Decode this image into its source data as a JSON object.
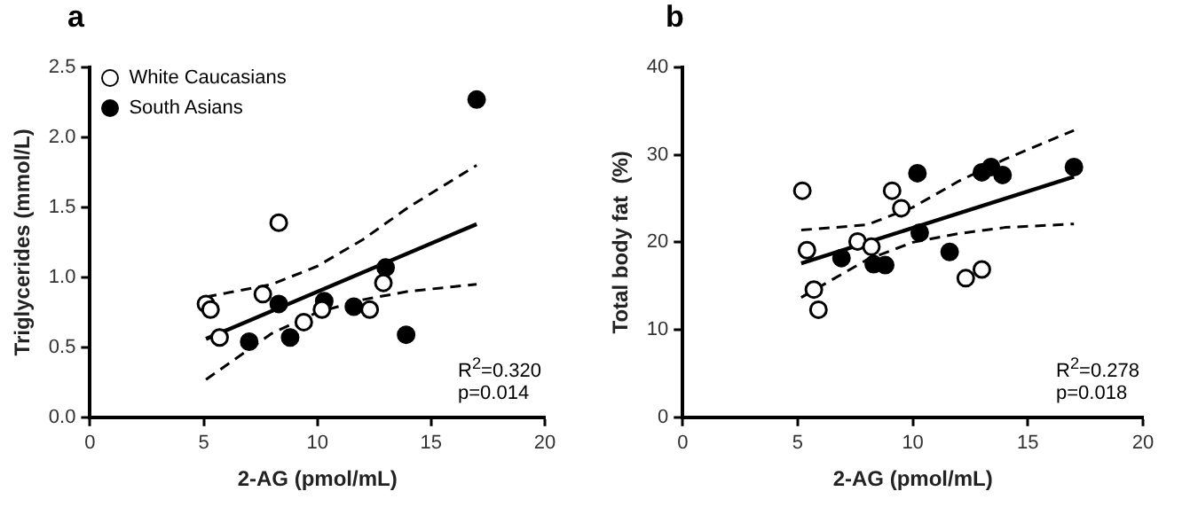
{
  "chart_data": [
    {
      "type": "scatter",
      "title": "a",
      "xlabel": "2-AG (pmol/mL)",
      "ylabel": "Triglycerides (mmol/L)",
      "xlim": [
        0,
        20
      ],
      "xticks": [
        0,
        5,
        10,
        15,
        20
      ],
      "ylim": [
        0,
        2.5
      ],
      "yticks": [
        {
          "value": 0,
          "label": "0.0"
        },
        {
          "value": 0.5,
          "label": "0.5"
        },
        {
          "value": 1,
          "label": "1.0"
        },
        {
          "value": 1.5,
          "label": "1.5"
        },
        {
          "value": 2,
          "label": "2.0"
        },
        {
          "value": 2.5,
          "label": "2.5"
        }
      ],
      "grid": false,
      "legend": "top left",
      "marker": "circle",
      "annotations": [
        "R$^{2}$=0.320",
        "p=0.014"
      ],
      "series": [
        {
          "name": "White Caucasians",
          "color": "#ffffff",
          "x": [
            5.1,
            5.3,
            5.7,
            7.6,
            8.3,
            9.4,
            10.2,
            12.3,
            12.9
          ],
          "values": [
            0.81,
            0.77,
            0.57,
            0.88,
            1.39,
            0.68,
            0.77,
            0.77,
            0.96
          ]
        },
        {
          "name": "South Asians",
          "color": "#000000",
          "x": [
            7.0,
            8.3,
            8.8,
            10.3,
            11.6,
            13.0,
            13.9,
            17.0
          ],
          "values": [
            0.54,
            0.81,
            0.57,
            0.83,
            0.79,
            1.07,
            0.59,
            2.27
          ]
        },
        {
          "type": "line",
          "marker": "none",
          "color": "#000000",
          "line_style": "solid",
          "x": [
            5.1,
            17.0
          ],
          "values": [
            0.56,
            1.38
          ]
        },
        {
          "type": "line",
          "marker": "none",
          "color": "#000000",
          "line_style": "dashed",
          "x": [
            5.1,
            8,
            10,
            12,
            14,
            17
          ],
          "values": [
            0.86,
            0.95,
            1.08,
            1.27,
            1.5,
            1.8
          ]
        },
        {
          "type": "line",
          "marker": "none",
          "color": "#000000",
          "line_style": "dashed",
          "x": [
            5.1,
            8,
            10,
            12,
            14,
            17
          ],
          "values": [
            0.27,
            0.6,
            0.75,
            0.84,
            0.9,
            0.95
          ]
        }
      ]
    },
    {
      "type": "scatter",
      "title": "b",
      "xlabel": "2-AG (pmol/mL)",
      "ylabel": "Total body fat  (%)",
      "xlim": [
        0,
        20
      ],
      "xticks": [
        0,
        5,
        10,
        15,
        20
      ],
      "ylim": [
        0,
        40
      ],
      "yticks": [
        0,
        10,
        20,
        30,
        40
      ],
      "grid": false,
      "marker": "circle",
      "annotations": [
        "R$^{2}$=0.278",
        "p=0.018"
      ],
      "series": [
        {
          "color": "#ffffff",
          "x": [
            5.2,
            5.4,
            5.7,
            5.9,
            7.6,
            8.2,
            9.1,
            9.5,
            12.3,
            13.0
          ],
          "values": [
            25.9,
            19.1,
            14.6,
            12.3,
            20.1,
            19.5,
            25.9,
            23.9,
            15.9,
            16.9
          ]
        },
        {
          "color": "#000000",
          "x": [
            6.9,
            8.3,
            8.8,
            10.2,
            10.3,
            11.6,
            13.0,
            13.4,
            13.9,
            17.0
          ],
          "values": [
            18.2,
            17.5,
            17.4,
            27.9,
            21.1,
            18.9,
            28.0,
            28.6,
            27.7,
            28.6
          ]
        },
        {
          "type": "line",
          "marker": "none",
          "color": "#000000",
          "line_style": "solid",
          "x": [
            5.15,
            17.0
          ],
          "values": [
            17.6,
            27.5
          ]
        },
        {
          "type": "line",
          "marker": "none",
          "color": "#000000",
          "line_style": "dashed",
          "x": [
            5.15,
            8,
            10,
            12,
            14,
            17
          ],
          "values": [
            21.4,
            22,
            24,
            27,
            29.5,
            32.8
          ]
        },
        {
          "type": "line",
          "marker": "none",
          "color": "#000000",
          "line_style": "dashed",
          "x": [
            5.15,
            8,
            10,
            12,
            14,
            17
          ],
          "values": [
            13.7,
            18,
            20,
            21,
            21.7,
            22.1
          ]
        }
      ]
    }
  ]
}
